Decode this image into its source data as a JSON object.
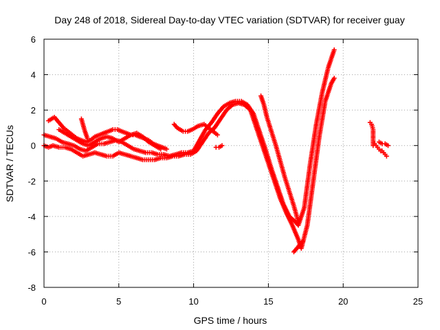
{
  "chart_data": {
    "type": "scatter",
    "title": "Day 248 of 2018, Sidereal Day-to-day VTEC variation (SDTVAR) for receiver guay",
    "xlabel": "GPS time / hours",
    "ylabel": "SDTVAR / TECUs",
    "xlim": [
      0,
      25
    ],
    "ylim": [
      -8,
      6
    ],
    "xticks": [
      "0",
      "5",
      "10",
      "15",
      "20",
      "25"
    ],
    "yticks": [
      "-8",
      "-6",
      "-4",
      "-2",
      "0",
      "2",
      "4",
      "6"
    ],
    "grid": true,
    "legend": "none",
    "marker": "plus",
    "color": "#ff0000",
    "series": [
      {
        "x": [
          0.0,
          0.3,
          0.6,
          1.0,
          1.4,
          1.8,
          2.2,
          2.6,
          3.0,
          3.4,
          3.8,
          4.2,
          4.6,
          5.0,
          5.4,
          5.8,
          6.2,
          6.6,
          7.0,
          7.4,
          7.8,
          8.2,
          8.6,
          9.0,
          9.4,
          9.8,
          10.2,
          10.6,
          11.0,
          11.4,
          11.8,
          12.2,
          12.6,
          13.0,
          13.4,
          13.8,
          14.2,
          14.6,
          15.0,
          15.4,
          15.8,
          16.2,
          16.6,
          17.0,
          17.2,
          17.6,
          18.0,
          18.4,
          18.8,
          19.2,
          19.4
        ],
        "y": [
          0.0,
          -0.1,
          0.0,
          -0.1,
          -0.1,
          -0.2,
          -0.4,
          -0.6,
          -0.5,
          -0.4,
          -0.5,
          -0.6,
          -0.6,
          -0.4,
          -0.5,
          -0.6,
          -0.7,
          -0.8,
          -0.8,
          -0.8,
          -0.7,
          -0.7,
          -0.6,
          -0.6,
          -0.5,
          -0.5,
          -0.3,
          0.2,
          0.7,
          1.0,
          1.5,
          2.0,
          2.3,
          2.4,
          2.3,
          2.0,
          1.0,
          0.0,
          -1.0,
          -2.0,
          -3.0,
          -3.8,
          -4.5,
          -5.3,
          -5.8,
          -4.5,
          -2.0,
          0.5,
          2.5,
          3.5,
          3.8
        ]
      },
      {
        "x": [
          0.0,
          0.4,
          0.8,
          1.2,
          1.6,
          2.0,
          2.4,
          2.8,
          3.2,
          3.6,
          4.0,
          4.4,
          4.8,
          5.2,
          5.6,
          6.0,
          6.4,
          6.8,
          7.2,
          7.6,
          8.0,
          8.4,
          8.8,
          9.2,
          9.6,
          10.0,
          10.4,
          10.8,
          11.2,
          11.6,
          12.0,
          12.4,
          12.8,
          13.2,
          13.6,
          14.0,
          14.4,
          14.8,
          15.2,
          15.6,
          16.0,
          16.4,
          16.8,
          17.0,
          17.4,
          17.8,
          18.2,
          18.6,
          19.0,
          19.4
        ],
        "y": [
          0.6,
          0.5,
          0.4,
          0.2,
          0.1,
          0.0,
          -0.2,
          -0.3,
          -0.1,
          0.1,
          0.1,
          0.2,
          0.3,
          0.2,
          0.0,
          -0.2,
          -0.3,
          -0.4,
          -0.4,
          -0.5,
          -0.5,
          -0.6,
          -0.5,
          -0.4,
          -0.4,
          -0.3,
          0.3,
          0.9,
          1.3,
          1.8,
          2.2,
          2.4,
          2.5,
          2.5,
          2.3,
          1.8,
          0.8,
          -0.2,
          -1.3,
          -2.3,
          -3.3,
          -4.0,
          -4.3,
          -4.5,
          -3.5,
          -1.0,
          1.2,
          3.0,
          4.4,
          5.4
        ]
      },
      {
        "x": [
          0.3,
          0.5,
          0.7,
          1.0,
          1.3,
          1.6,
          1.9,
          2.2,
          2.5,
          2.8,
          3.1,
          3.4,
          3.7,
          4.0,
          4.3,
          4.6,
          4.9,
          5.2,
          5.5,
          5.8,
          6.1,
          6.4,
          6.7,
          7.0,
          7.3,
          7.6,
          7.9,
          8.2
        ],
        "y": [
          1.4,
          1.5,
          1.6,
          1.3,
          1.0,
          0.8,
          0.6,
          0.4,
          0.3,
          0.2,
          0.3,
          0.5,
          0.6,
          0.7,
          0.8,
          0.9,
          0.9,
          0.8,
          0.7,
          0.6,
          0.6,
          0.5,
          0.4,
          0.3,
          0.1,
          0.0,
          -0.1,
          -0.2
        ]
      },
      {
        "x": [
          1.0,
          1.4,
          1.8,
          2.2,
          2.6,
          3.0,
          3.4,
          3.8,
          4.2,
          4.6,
          5.0,
          5.4,
          5.8,
          6.2,
          6.6,
          7.0,
          7.4,
          7.8
        ],
        "y": [
          0.9,
          0.7,
          0.5,
          0.3,
          0.1,
          0.0,
          0.2,
          0.4,
          0.5,
          0.4,
          0.2,
          0.4,
          0.6,
          0.7,
          0.5,
          0.2,
          0.0,
          -0.2
        ]
      },
      {
        "x": [
          2.5,
          2.7,
          2.9
        ],
        "y": [
          1.5,
          0.9,
          0.4
        ]
      },
      {
        "x": [
          8.7,
          8.9,
          9.1,
          9.3,
          9.6,
          9.9,
          10.3,
          10.7,
          11.0,
          11.3,
          11.6
        ],
        "y": [
          1.2,
          1.0,
          0.9,
          0.8,
          0.8,
          0.9,
          1.1,
          1.2,
          1.0,
          0.8,
          0.6
        ]
      },
      {
        "x": [
          11.5,
          11.7,
          11.9
        ],
        "y": [
          -0.1,
          -0.1,
          0.0
        ]
      },
      {
        "x": [
          14.5,
          14.7,
          14.9,
          15.2,
          15.5,
          15.8,
          16.1,
          16.4,
          16.7,
          17.0
        ],
        "y": [
          2.8,
          2.3,
          1.6,
          0.8,
          0.0,
          -0.9,
          -1.8,
          -2.6,
          -3.4,
          -4.3
        ]
      },
      {
        "x": [
          16.7,
          16.9,
          17.1,
          17.3
        ],
        "y": [
          -6.0,
          -5.8,
          -5.6,
          -5.4
        ]
      },
      {
        "x": [
          21.8,
          21.9,
          22.0,
          22.0,
          22.1,
          22.2,
          22.3,
          22.4,
          22.5,
          22.6,
          22.7,
          22.8,
          22.9
        ],
        "y": [
          1.3,
          1.2,
          0.9,
          0.0,
          0.1,
          0.0,
          -0.1,
          -0.2,
          -0.3,
          -0.3,
          -0.4,
          -0.5,
          -0.6
        ]
      },
      {
        "x": [
          22.4,
          22.6,
          22.8,
          23.0
        ],
        "y": [
          0.2,
          0.1,
          0.1,
          0.0
        ]
      }
    ]
  }
}
